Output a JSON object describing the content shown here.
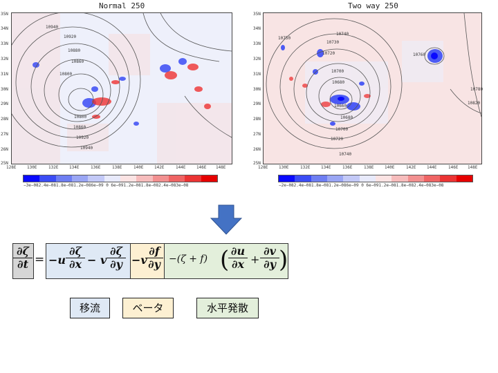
{
  "left_panel": {
    "title": "Normal 250",
    "y_ticks": [
      "35N",
      "34N",
      "33N",
      "32N",
      "31N",
      "30N",
      "29N",
      "28N",
      "27N",
      "26N",
      "25N"
    ],
    "x_ticks": [
      "128E",
      "130E",
      "132E",
      "134E",
      "136E",
      "138E",
      "140E",
      "142E",
      "144E",
      "146E",
      "148E"
    ],
    "contour_labels": [
      "10940",
      "10920",
      "10880",
      "10860",
      "10800",
      "10800",
      "10860",
      "10920",
      "10940"
    ],
    "colorbar_labels": "−3e−082.4e−081.8e−081.2e−086e−09  0   6e−091.2e−081.8e−082.4e−083e−08"
  },
  "right_panel": {
    "title": "Two way 250",
    "y_ticks": [
      "35N",
      "34N",
      "33N",
      "32N",
      "31N",
      "30N",
      "29N",
      "28N",
      "27N",
      "26N",
      "25N"
    ],
    "x_ticks": [
      "128E",
      "130E",
      "132E",
      "134E",
      "136E",
      "138E",
      "140E",
      "142E",
      "144E",
      "146E",
      "148E"
    ],
    "contour_labels": [
      "10750",
      "10740",
      "10730",
      "10720",
      "10700",
      "10680",
      "10660",
      "10680",
      "10700",
      "10720",
      "10740",
      "10760",
      "10780",
      "10820"
    ],
    "colorbar_labels": "−2e−082.4e−081.8e−081.2e−086e−09  0   6e−091.2e−081.8e−082.4e−083e−08"
  },
  "colorbar_colors": [
    "#0a0aff",
    "#3b4cf5",
    "#6e7ef2",
    "#9aa6f4",
    "#c3c9f7",
    "#e8eafb",
    "#fbe3e3",
    "#f6bcbc",
    "#f29090",
    "#ef6464",
    "#eb3434",
    "#e60000"
  ],
  "equation": {
    "lhs_num": "∂ζ",
    "lhs_den": "∂t",
    "equals": "=",
    "adv_term1_prefix": "−u",
    "adv_term1_num": "∂ζ",
    "adv_term1_den": "∂x",
    "adv_term2_prefix": "− v",
    "adv_term2_num": "∂ζ",
    "adv_term2_den": "∂y",
    "beta_prefix": "−v",
    "beta_num": "∂f",
    "beta_den": "∂y",
    "div_prefix": "−(ζ + f)",
    "div_num1": "∂u",
    "div_den1": "∂x",
    "div_plus": "+",
    "div_num2": "∂v",
    "div_den2": "∂y"
  },
  "term_labels": {
    "advection": "移流",
    "beta": "ベータ",
    "divergence": "水平発散"
  },
  "colors": {
    "advection_bg": "#dfe9f5",
    "beta_bg": "#fdf0d2",
    "divergence_bg": "#e3efdb",
    "lhs_bg": "#d6d6d6",
    "arrow": "#4472c4"
  }
}
